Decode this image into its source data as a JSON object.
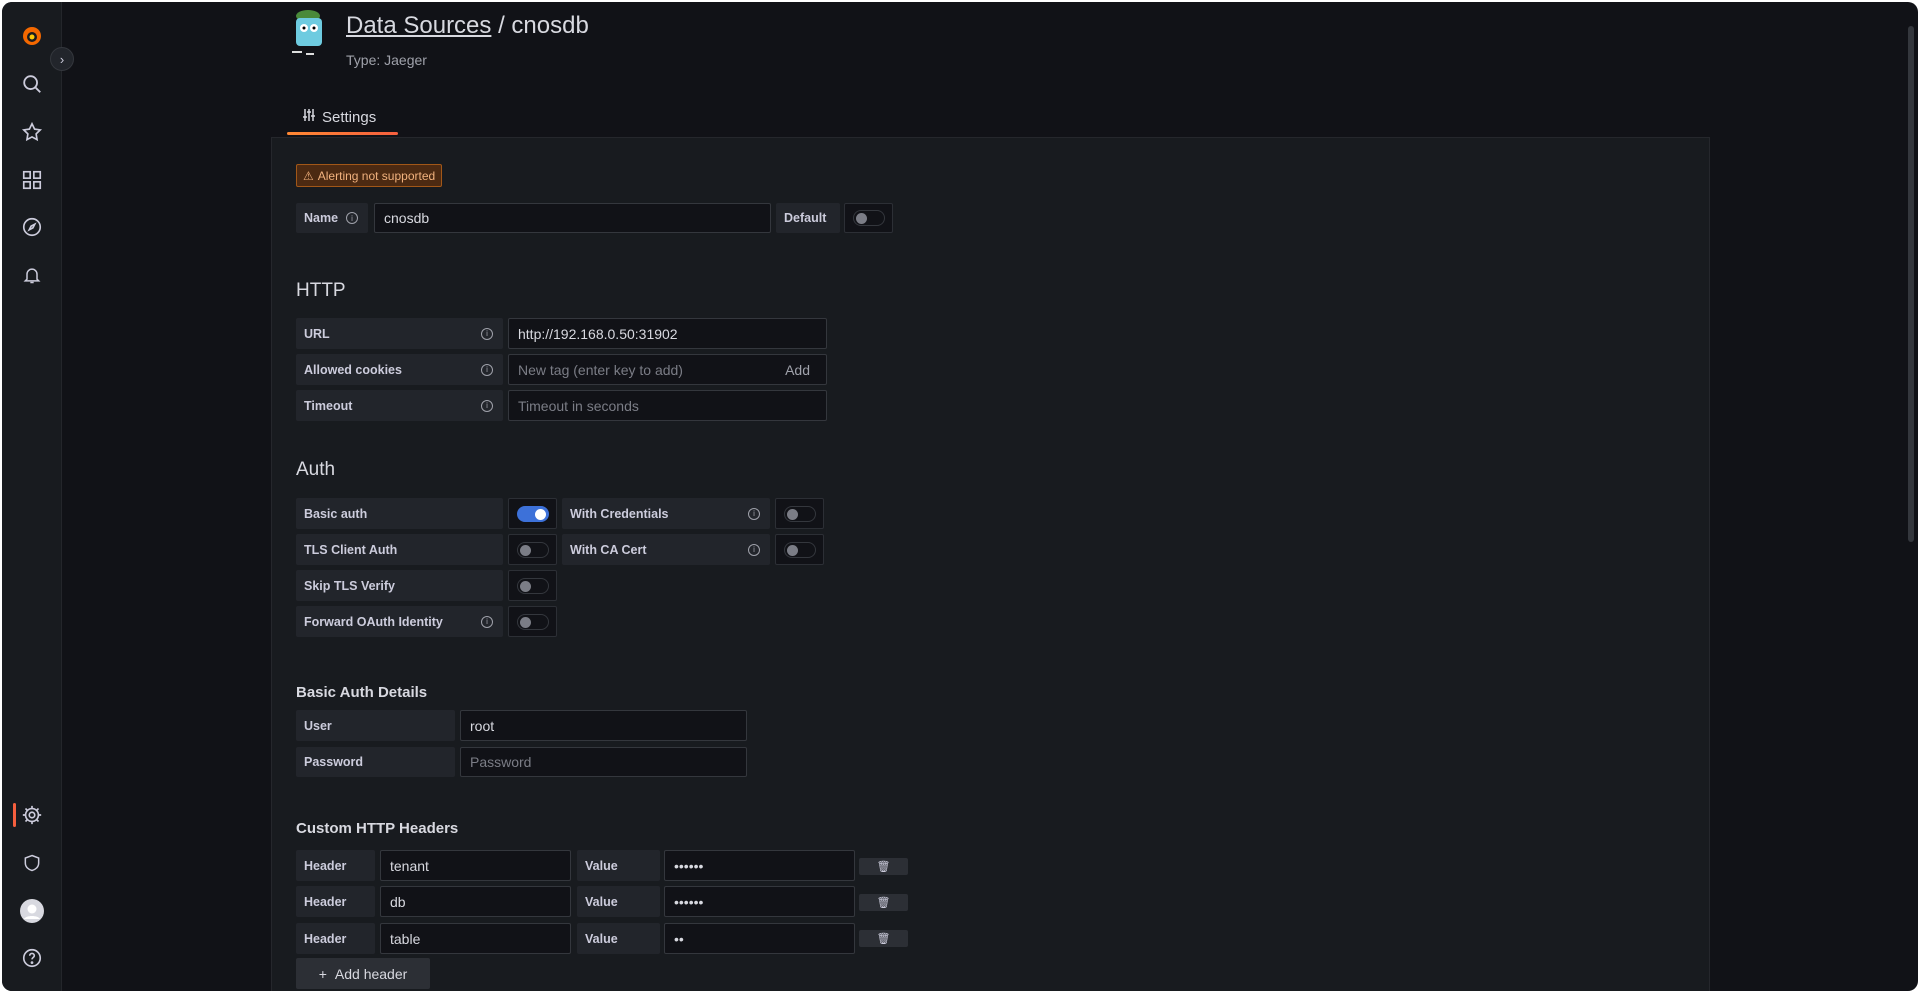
{
  "header": {
    "breadcrumb_link": "Data Sources",
    "separator": " / ",
    "title": "cnosdb",
    "subtitle": "Type: Jaeger"
  },
  "tabs": [
    {
      "label": "Settings",
      "active": true
    }
  ],
  "alert": "Alerting not supported",
  "name": {
    "label": "Name",
    "value": "cnosdb",
    "default_label": "Default",
    "default_on": false
  },
  "http": {
    "heading": "HTTP",
    "url": {
      "label": "URL",
      "value": "http://192.168.0.50:31902"
    },
    "cookies": {
      "label": "Allowed cookies",
      "placeholder": "New tag (enter key to add)",
      "add": "Add"
    },
    "timeout": {
      "label": "Timeout",
      "placeholder": "Timeout in seconds"
    }
  },
  "auth": {
    "heading": "Auth",
    "basic": {
      "label": "Basic auth",
      "on": true
    },
    "with_credentials": {
      "label": "With Credentials",
      "on": false
    },
    "tls_client": {
      "label": "TLS Client Auth",
      "on": false
    },
    "with_ca": {
      "label": "With CA Cert",
      "on": false
    },
    "skip_tls": {
      "label": "Skip TLS Verify",
      "on": false
    },
    "forward_oauth": {
      "label": "Forward OAuth Identity",
      "on": false
    }
  },
  "basic_auth": {
    "heading": "Basic Auth Details",
    "user_label": "User",
    "user": "root",
    "password_label": "Password",
    "password_placeholder": "Password"
  },
  "headers": {
    "heading": "Custom HTTP Headers",
    "header_label": "Header",
    "value_label": "Value",
    "add": "Add header",
    "rows": [
      {
        "header": "tenant",
        "value": "••••••"
      },
      {
        "header": "db",
        "value": "••••••"
      },
      {
        "header": "table",
        "value": "••"
      }
    ]
  },
  "colors": {
    "accent": "#f55f3e",
    "toggle_on": "#3d71d9",
    "background": "#111217",
    "panel": "#181b1f"
  }
}
